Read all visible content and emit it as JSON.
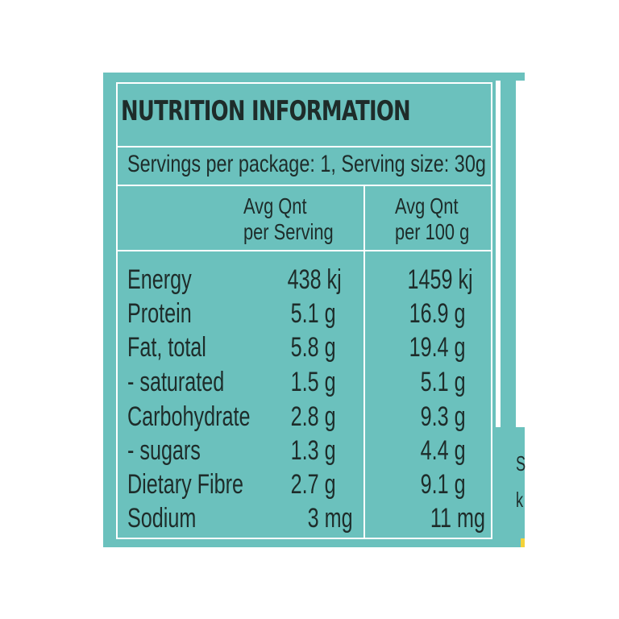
{
  "label": {
    "title": "NUTRITION INFORMATION",
    "servings": "Servings per package: 1, Serving size: 30g",
    "col_serving_line1": "Avg Qnt",
    "col_serving_line2": "per Serving",
    "col_100g_line1": "Avg Qnt",
    "col_100g_line2": "per 100 g",
    "rows": [
      {
        "name": "Energy",
        "per_serving": "438 kj",
        "per_100g": "1459 kj"
      },
      {
        "name": "Protein",
        "per_serving": "5.1 g",
        "per_100g": "16.9 g"
      },
      {
        "name": "Fat, total",
        "per_serving": "5.8 g",
        "per_100g": "19.4 g"
      },
      {
        "name": "- saturated",
        "per_serving": "1.5 g",
        "per_100g": "5.1 g"
      },
      {
        "name": "Carbohydrate",
        "per_serving": "2.8 g",
        "per_100g": "9.3 g"
      },
      {
        "name": "- sugars",
        "per_serving": "1.3 g",
        "per_100g": "4.4 g"
      },
      {
        "name": "Dietary Fibre",
        "per_serving": "2.7 g",
        "per_100g": "9.1 g"
      },
      {
        "name": "Sodium",
        "per_serving": "3 mg",
        "per_100g": "11 mg"
      }
    ]
  },
  "edge_glyphs": [
    "S",
    "k"
  ],
  "colors": {
    "panel": "#6bc1bd",
    "text": "#1e2c2a",
    "lines": "#ffffff"
  }
}
